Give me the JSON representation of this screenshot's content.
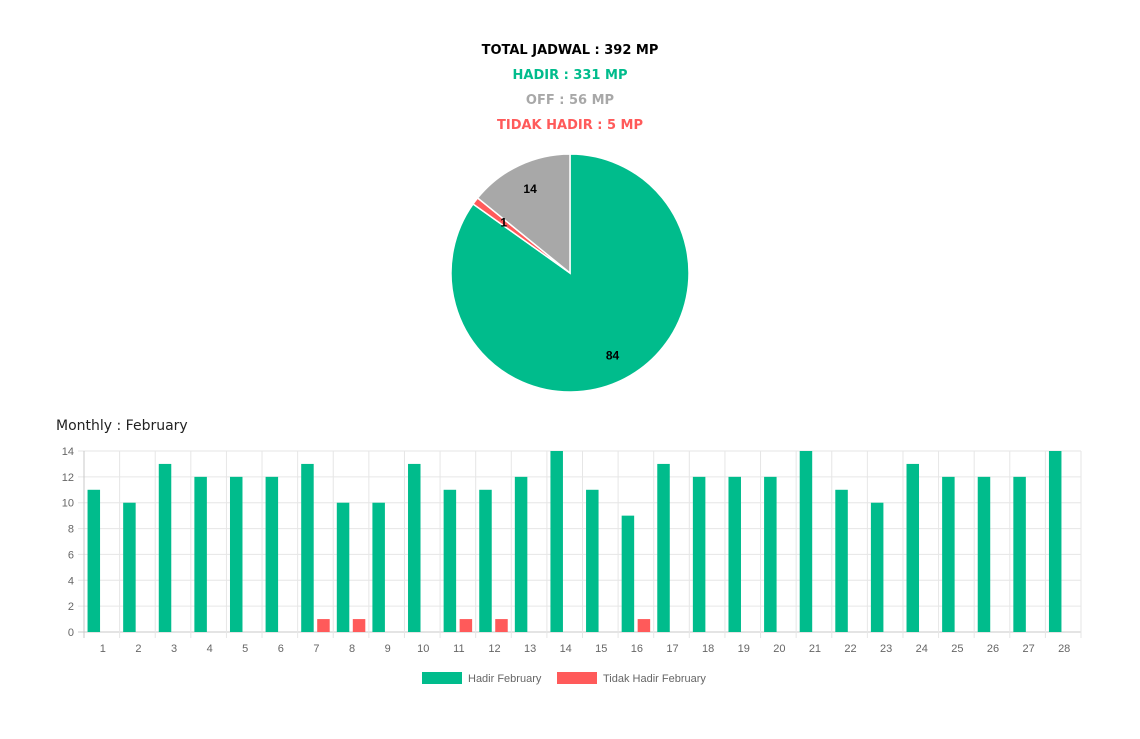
{
  "summary": {
    "total": "TOTAL JADWAL : 392 MP",
    "hadir": "HADIR : 331 MP",
    "off": "OFF : 56 MP",
    "tidak_hadir": "TIDAK HADIR : 5 MP"
  },
  "colors": {
    "hadir": "#00BC8C",
    "off": "#A8A8A8",
    "tidak_hadir": "#FF5A5A",
    "total": "#000000",
    "grid": "#E6E6E6",
    "axis": "#C8C8C8"
  },
  "monthly": {
    "title": "Monthly : February"
  },
  "chart_data": [
    {
      "type": "pie",
      "title": "",
      "labels": [
        "",
        "",
        ""
      ],
      "values": [
        84,
        1,
        14
      ],
      "display_labels": [
        "84",
        "1",
        "14"
      ],
      "colors": [
        "#00BC8C",
        "#FF5A5A",
        "#A8A8A8"
      ]
    },
    {
      "type": "bar",
      "title": "Monthly : February",
      "categories": [
        "1",
        "2",
        "3",
        "4",
        "5",
        "6",
        "7",
        "8",
        "9",
        "10",
        "11",
        "12",
        "13",
        "14",
        "15",
        "16",
        "17",
        "18",
        "19",
        "20",
        "21",
        "22",
        "23",
        "24",
        "25",
        "26",
        "27",
        "28"
      ],
      "series": [
        {
          "name": "Hadir February",
          "color": "#00BC8C",
          "values": [
            11,
            10,
            13,
            12,
            12,
            12,
            13,
            10,
            10,
            13,
            11,
            11,
            12,
            14,
            11,
            9,
            13,
            12,
            12,
            12,
            14,
            11,
            10,
            13,
            12,
            12,
            12,
            14
          ]
        },
        {
          "name": "Tidak Hadir February",
          "color": "#FF5A5A",
          "values": [
            0,
            0,
            0,
            0,
            0,
            0,
            1,
            1,
            0,
            0,
            1,
            1,
            0,
            0,
            0,
            1,
            0,
            0,
            0,
            0,
            0,
            0,
            0,
            0,
            0,
            0,
            0,
            0
          ]
        }
      ],
      "ylim": [
        0,
        14
      ],
      "yticks": [
        0,
        2,
        4,
        6,
        8,
        10,
        12,
        14
      ],
      "grid": true,
      "legend": "bottom",
      "xlabel": "",
      "ylabel": ""
    }
  ]
}
